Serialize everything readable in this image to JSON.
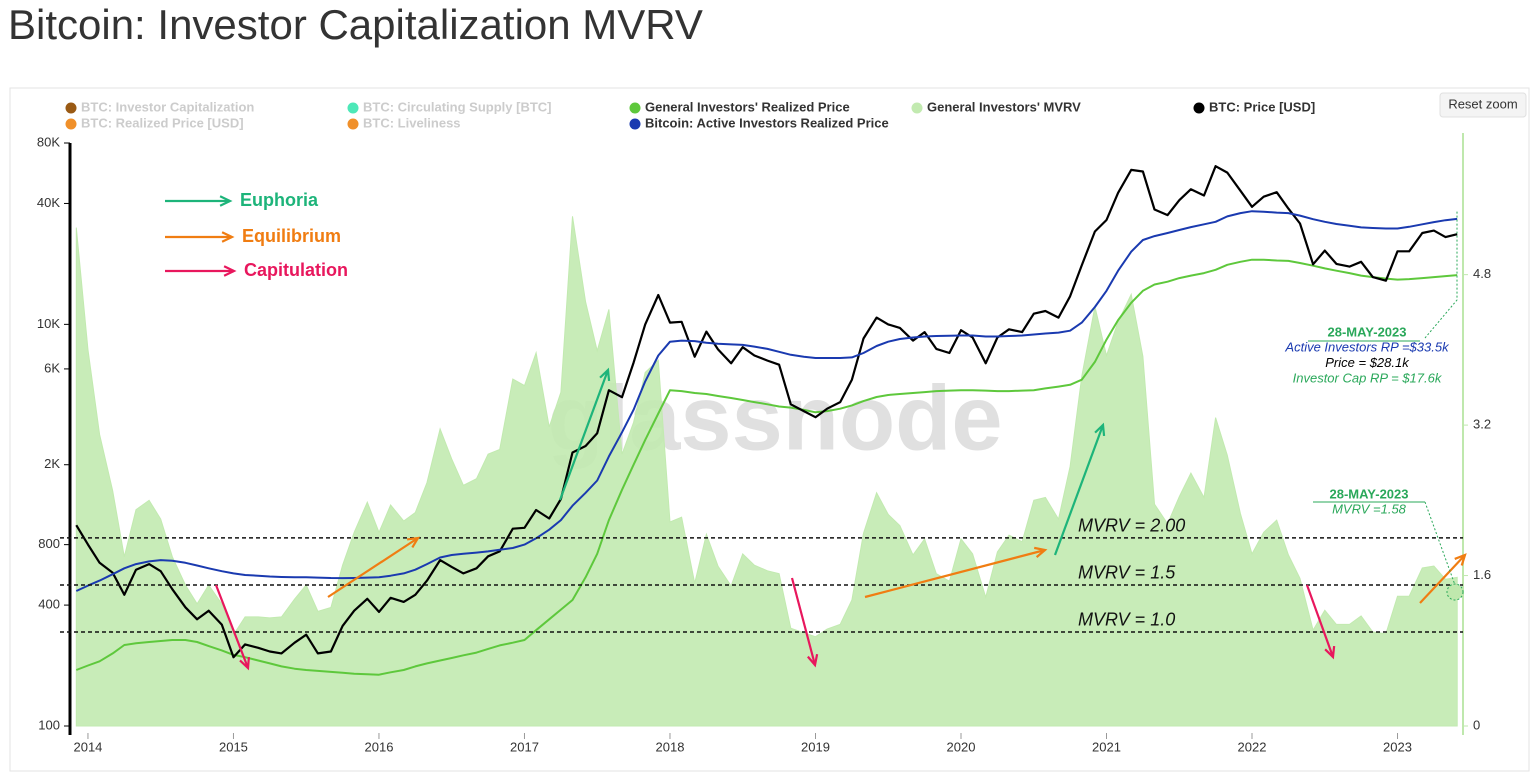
{
  "chart_data": {
    "type": "line",
    "title": "Bitcoin: Investor Capitalization MVRV",
    "reset_zoom": "Reset zoom",
    "watermark": "glassnode",
    "log_y": true,
    "xlim": [
      2013.9,
      2023.45
    ],
    "xticks": [
      2014,
      2015,
      2016,
      2017,
      2018,
      2019,
      2020,
      2021,
      2022,
      2023
    ],
    "ylim": [
      100,
      80000
    ],
    "yticks": [
      100,
      400,
      800,
      {
        "value": 2000,
        "label": "2K"
      },
      {
        "value": 6000,
        "label": "6K"
      },
      {
        "value": 10000,
        "label": "10K"
      },
      {
        "value": 40000,
        "label": "40K"
      },
      {
        "value": 80000,
        "label": "80K"
      }
    ],
    "y2lim": [
      0,
      6.2
    ],
    "y2ticks": [
      0,
      1.6,
      3.2,
      4.8
    ],
    "x": [
      2013.92,
      2014.0,
      2014.08,
      2014.17,
      2014.25,
      2014.33,
      2014.42,
      2014.5,
      2014.58,
      2014.67,
      2014.75,
      2014.83,
      2014.92,
      2015.0,
      2015.08,
      2015.17,
      2015.25,
      2015.33,
      2015.42,
      2015.5,
      2015.58,
      2015.67,
      2015.75,
      2015.83,
      2015.92,
      2016.0,
      2016.08,
      2016.17,
      2016.25,
      2016.33,
      2016.42,
      2016.5,
      2016.58,
      2016.67,
      2016.75,
      2016.83,
      2016.92,
      2017.0,
      2017.08,
      2017.17,
      2017.25,
      2017.33,
      2017.42,
      2017.5,
      2017.58,
      2017.67,
      2017.75,
      2017.83,
      2017.92,
      2018.0,
      2018.08,
      2018.17,
      2018.25,
      2018.33,
      2018.42,
      2018.5,
      2018.58,
      2018.67,
      2018.75,
      2018.83,
      2018.92,
      2019.0,
      2019.08,
      2019.17,
      2019.25,
      2019.33,
      2019.42,
      2019.5,
      2019.58,
      2019.67,
      2019.75,
      2019.83,
      2019.92,
      2020.0,
      2020.08,
      2020.17,
      2020.25,
      2020.33,
      2020.42,
      2020.5,
      2020.58,
      2020.67,
      2020.75,
      2020.83,
      2020.92,
      2021.0,
      2021.08,
      2021.17,
      2021.25,
      2021.33,
      2021.42,
      2021.5,
      2021.58,
      2021.67,
      2021.75,
      2021.83,
      2021.92,
      2022.0,
      2022.08,
      2022.17,
      2022.25,
      2022.33,
      2022.42,
      2022.5,
      2022.58,
      2022.67,
      2022.75,
      2022.83,
      2022.92,
      2023.0,
      2023.08,
      2023.17,
      2023.25,
      2023.33,
      2023.41
    ],
    "series": [
      {
        "name": "General Investors' Realized Price",
        "color": "#5ec83c",
        "axis": "y",
        "values": [
          190,
          200,
          210,
          230,
          253,
          258,
          262,
          265,
          268,
          268,
          262,
          250,
          238,
          226,
          220,
          212,
          205,
          198,
          193,
          190,
          188,
          186,
          184,
          182,
          181,
          180,
          185,
          190,
          198,
          205,
          212,
          218,
          225,
          232,
          242,
          252,
          260,
          268,
          300,
          340,
          380,
          424,
          550,
          720,
          1060,
          1500,
          2000,
          2660,
          3600,
          4700,
          4650,
          4550,
          4500,
          4400,
          4300,
          4200,
          4100,
          4000,
          3900,
          3850,
          3750,
          3650,
          3700,
          3800,
          3950,
          4150,
          4350,
          4450,
          4500,
          4550,
          4600,
          4650,
          4680,
          4700,
          4700,
          4680,
          4650,
          4650,
          4680,
          4700,
          4800,
          4900,
          5000,
          5300,
          6500,
          8400,
          10500,
          12800,
          14700,
          15800,
          16300,
          17000,
          17500,
          18000,
          18700,
          19800,
          20500,
          21000,
          21000,
          20800,
          20700,
          20200,
          19600,
          19000,
          18500,
          18000,
          17500,
          17200,
          16900,
          16700,
          16800,
          17000,
          17200,
          17400,
          17600
        ]
      },
      {
        "name": "General Investors' MVRV",
        "color": "#c2eab0",
        "axis": "y2",
        "type": "area",
        "values": [
          5.3,
          4.0,
          3.1,
          2.5,
          1.8,
          2.3,
          2.4,
          2.2,
          1.8,
          1.5,
          1.3,
          1.5,
          1.3,
          0.97,
          1.16,
          1.16,
          1.15,
          1.16,
          1.35,
          1.5,
          1.22,
          1.26,
          1.71,
          2.06,
          2.38,
          2.06,
          2.35,
          2.18,
          2.27,
          2.59,
          3.16,
          2.84,
          2.56,
          2.63,
          2.89,
          2.94,
          3.69,
          3.62,
          3.97,
          3.18,
          3.55,
          5.42,
          4.51,
          3.99,
          4.43,
          2.89,
          3.23,
          3.76,
          3.89,
          2.17,
          2.22,
          1.52,
          2.04,
          1.7,
          1.49,
          1.83,
          1.71,
          1.65,
          1.62,
          1.04,
          0.99,
          0.95,
          1.03,
          1.08,
          1.34,
          2.05,
          2.48,
          2.25,
          2.13,
          1.82,
          1.99,
          1.62,
          1.54,
          1.99,
          1.83,
          1.37,
          1.85,
          2.03,
          1.96,
          2.4,
          2.43,
          2.2,
          2.76,
          3.72,
          4.46,
          3.94,
          4.3,
          4.59,
          3.93,
          2.36,
          2.15,
          2.44,
          2.69,
          2.43,
          3.28,
          2.88,
          2.26,
          1.83,
          2.06,
          2.19,
          1.82,
          1.57,
          1.02,
          1.23,
          1.08,
          1.08,
          1.17,
          1.0,
          0.98,
          1.38,
          1.38,
          1.68,
          1.7,
          1.56,
          1.58
        ]
      },
      {
        "name": "BTC: Price [USD]",
        "color": "#000000",
        "axis": "y",
        "values": [
          1000,
          800,
          650,
          580,
          450,
          600,
          640,
          590,
          480,
          390,
          340,
          375,
          320,
          220,
          255,
          245,
          235,
          230,
          260,
          285,
          230,
          235,
          315,
          375,
          430,
          370,
          435,
          415,
          450,
          530,
          670,
          620,
          575,
          610,
          700,
          740,
          960,
          970,
          1190,
          1080,
          1350,
          2300,
          2480,
          2870,
          4700,
          4340,
          6450,
          10000,
          14000,
          10200,
          10300,
          6900,
          9200,
          7500,
          6400,
          7700,
          7000,
          6600,
          6300,
          4000,
          3700,
          3450,
          3800,
          4100,
          5300,
          8500,
          10800,
          10000,
          9600,
          8300,
          9150,
          7550,
          7200,
          9350,
          8600,
          6400,
          8600,
          9450,
          9150,
          11300,
          11650,
          10800,
          13800,
          19700,
          29000,
          33100,
          45200,
          58800,
          57700,
          37300,
          35000,
          41500,
          47100,
          43800,
          61300,
          57000,
          46300,
          38500,
          43200,
          45500,
          37700,
          31800,
          19900,
          23300,
          20000,
          19400,
          20500,
          17200,
          16500,
          23100,
          23100,
          28500,
          29300,
          27200,
          28100
        ]
      },
      {
        "name": "Bitcoin: Active Investors Realized Price",
        "color": "#1a3ab0",
        "axis": "y",
        "values": [
          470,
          500,
          530,
          570,
          610,
          640,
          660,
          670,
          665,
          650,
          630,
          610,
          590,
          575,
          565,
          560,
          555,
          552,
          550,
          550,
          548,
          546,
          545,
          546,
          548,
          550,
          560,
          575,
          600,
          640,
          690,
          710,
          720,
          730,
          740,
          755,
          770,
          800,
          860,
          950,
          1060,
          1250,
          1450,
          1670,
          2200,
          2900,
          3760,
          5200,
          7000,
          8200,
          8300,
          8250,
          8100,
          8000,
          7950,
          7900,
          7750,
          7550,
          7300,
          7050,
          6900,
          6800,
          6800,
          6800,
          6850,
          7200,
          7800,
          8200,
          8450,
          8600,
          8700,
          8750,
          8780,
          8800,
          8800,
          8700,
          8700,
          8750,
          8800,
          8900,
          9000,
          9100,
          9300,
          10200,
          12200,
          14700,
          18500,
          23000,
          26300,
          27500,
          28500,
          29500,
          30500,
          31500,
          32400,
          34500,
          35800,
          36600,
          36400,
          36000,
          35800,
          34800,
          33400,
          32400,
          31600,
          31000,
          30400,
          30200,
          30000,
          30000,
          30600,
          31500,
          32300,
          33000,
          33500
        ]
      }
    ],
    "hidden_series": [
      {
        "name": "BTC: Investor Capitalization",
        "color": "#9a5a14"
      },
      {
        "name": "BTC: Circulating Supply [BTC]",
        "color": "#4de8b8"
      },
      {
        "name": "BTC: Realized Price [USD]",
        "color": "#f0902a"
      },
      {
        "name": "BTC: Liveliness",
        "color": "#f0902a"
      }
    ],
    "phases": [
      {
        "label": "Euphoria",
        "color": "#1db47a"
      },
      {
        "label": "Equilibrium",
        "color": "#f07d12"
      },
      {
        "label": "Capitulation",
        "color": "#e8175d"
      }
    ],
    "reference_lines": [
      {
        "value": 2.0,
        "label": "MVRV = 2.00"
      },
      {
        "value": 1.5,
        "label": "MVRV = 1.5"
      },
      {
        "value": 1.0,
        "label": "MVRV = 1.0"
      }
    ],
    "callout_price": {
      "date": "28-MAY-2023",
      "lines": [
        "Active Investors RP =$33.5k",
        "Price = $28.1k",
        "Investor Cap RP = $17.6k"
      ]
    },
    "callout_mvrv": {
      "date": "28-MAY-2023",
      "text": "MVRV =1.58"
    }
  }
}
